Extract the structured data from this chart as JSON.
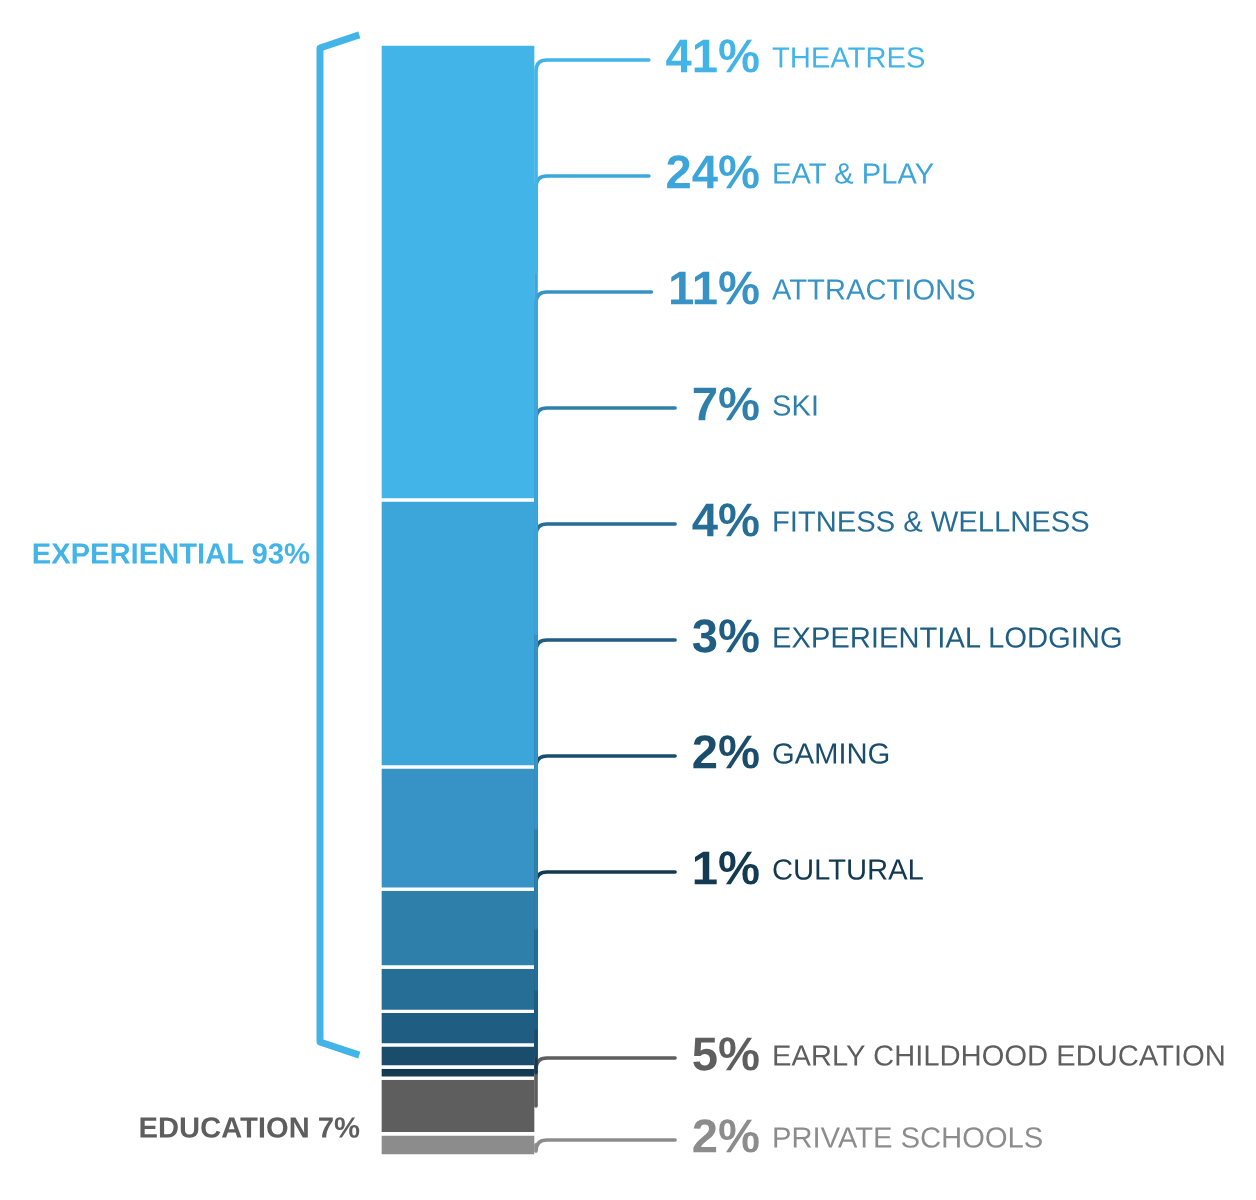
{
  "chart_data": {
    "type": "bar",
    "stacked": true,
    "categories": [
      null
    ],
    "series": [
      {
        "name": "PRIVATE SCHOOLS",
        "color": "#8c8c8c",
        "values": [
          2
        ],
        "value_labels": [
          "2%"
        ]
      },
      {
        "name": "EARLY CHILDHOOD EDUCATION",
        "color": "#5e5e5e",
        "values": [
          5
        ],
        "value_labels": [
          "5%"
        ]
      },
      {
        "name": "CULTURAL",
        "color": "#143a52",
        "values": [
          1
        ],
        "value_labels": [
          "1%"
        ]
      },
      {
        "name": "GAMING",
        "color": "#1a4d6c",
        "values": [
          2
        ],
        "value_labels": [
          "2%"
        ]
      },
      {
        "name": "EXPERIENTIAL LODGING",
        "color": "#1f5e82",
        "values": [
          3
        ],
        "value_labels": [
          "3%"
        ]
      },
      {
        "name": "FITNESS & WELLNESS",
        "color": "#266e96",
        "values": [
          4
        ],
        "value_labels": [
          "4%"
        ]
      },
      {
        "name": "SKI",
        "color": "#2e80ab",
        "values": [
          7
        ],
        "value_labels": [
          "7%"
        ]
      },
      {
        "name": "ATTRACTIONS",
        "color": "#3793c5",
        "values": [
          11
        ],
        "value_labels": [
          "11%"
        ]
      },
      {
        "name": "EAT & PLAY",
        "color": "#3ca5da",
        "values": [
          24
        ],
        "value_labels": [
          "24%"
        ]
      },
      {
        "name": "THEATRES",
        "color": "#42b4e7",
        "values": [
          41
        ],
        "value_labels": [
          "41%"
        ]
      }
    ],
    "annotations": [
      "EXPERIENTIAL 93%",
      "EDUCATION 7%"
    ],
    "legend": false
  }
}
